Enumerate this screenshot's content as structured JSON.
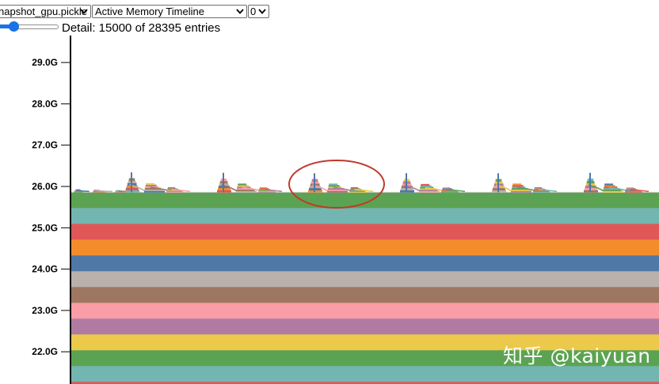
{
  "controls": {
    "snapshot_select": {
      "value": "napshot_gpu.pickle"
    },
    "view_select": {
      "value": "Active Memory Timeline"
    },
    "device_select": {
      "value": "0"
    },
    "detail_slider": {
      "fraction": 0.28
    },
    "detail_text": "Detail: 15000 of 28395 entries"
  },
  "chart_data": {
    "type": "area",
    "title": "",
    "xlabel": "",
    "ylabel": "",
    "y_unit": "G",
    "ylim": [
      21.15,
      29.9
    ],
    "yticks": [
      "22.0G",
      "23.0G",
      "24.0G",
      "25.0G",
      "26.0G",
      "27.0G",
      "28.0G",
      "29.0G"
    ],
    "ytick_values": [
      22,
      23,
      24,
      25,
      26,
      27,
      28,
      29
    ],
    "grid": false,
    "legend": "none",
    "baseline_top_value": 25.86,
    "bands": [
      {
        "color": "#5ba352"
      },
      {
        "color": "#73b5b0"
      },
      {
        "color": "#e05757"
      },
      {
        "color": "#f58c2b"
      },
      {
        "color": "#4e78a6"
      },
      {
        "color": "#bab0ac"
      },
      {
        "color": "#9d7761"
      },
      {
        "color": "#fa9da7"
      },
      {
        "color": "#b07ba3"
      },
      {
        "color": "#ecc94a"
      },
      {
        "color": "#5ba352"
      },
      {
        "color": "#73b5b0"
      },
      {
        "color": "#e05757"
      }
    ],
    "spikes": [
      {
        "peak": 26.04,
        "parts": 3,
        "heights": [
          0.08,
          0.06,
          0.05
        ]
      },
      {
        "peak": 26.34,
        "parts": 3,
        "heights": [
          0.34,
          0.22,
          0.12
        ]
      },
      {
        "peak": 26.33,
        "parts": 3,
        "heights": [
          0.33,
          0.21,
          0.12
        ]
      },
      {
        "peak": 26.32,
        "parts": 3,
        "heights": [
          0.32,
          0.21,
          0.12
        ]
      },
      {
        "peak": 26.32,
        "parts": 3,
        "heights": [
          0.32,
          0.2,
          0.12
        ]
      },
      {
        "peak": 26.32,
        "parts": 3,
        "heights": [
          0.32,
          0.21,
          0.12
        ]
      },
      {
        "peak": 26.33,
        "parts": 3,
        "heights": [
          0.33,
          0.21,
          0.12
        ]
      }
    ],
    "annotation": {
      "shape": "ellipse",
      "color": "#c0392b"
    }
  },
  "watermark": "知乎 @kaiyuan"
}
